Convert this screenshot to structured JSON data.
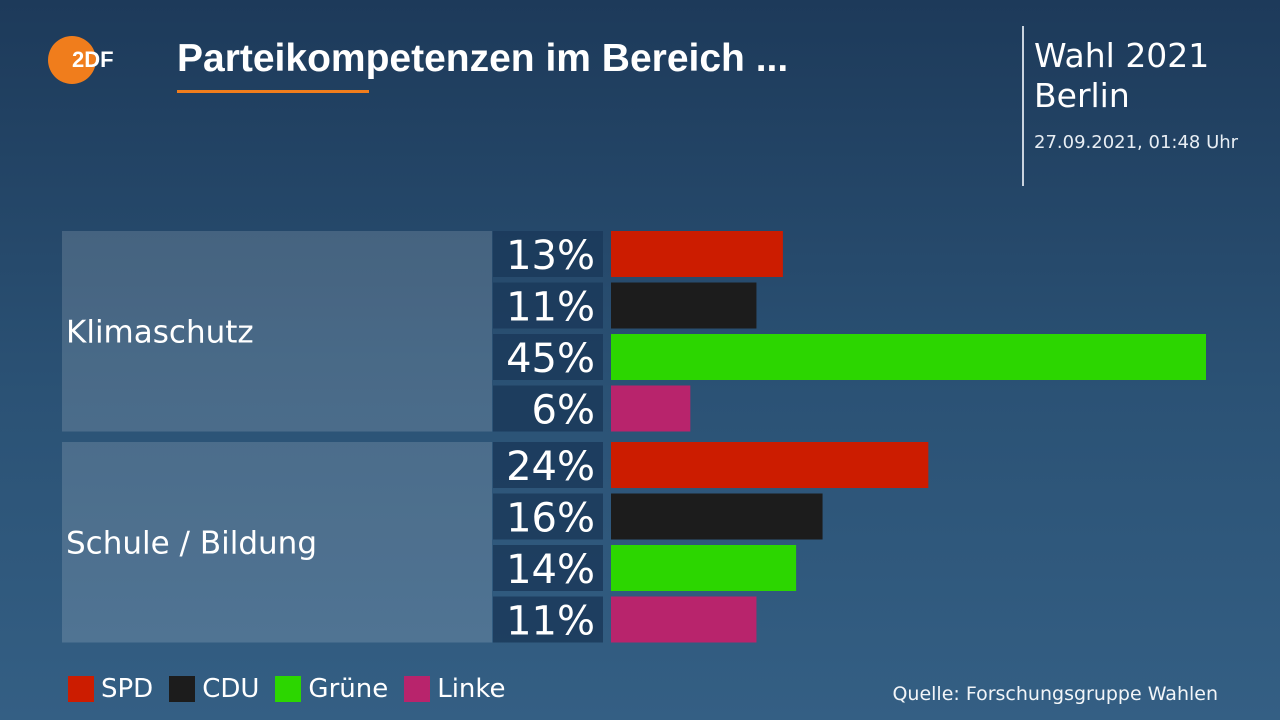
{
  "header": {
    "logo_text": "2DF",
    "title": "Parteikompetenzen im Bereich ...",
    "election": "Wahl 2021",
    "place": "Berlin",
    "timestamp": "27.09.2021, 01:48 Uhr"
  },
  "colors": {
    "SPD": "#cc1c00",
    "CDU": "#1c1c1c",
    "Grüne": "#2cd600",
    "Linke": "#b8246c",
    "accent": "#f07d1c"
  },
  "chart_data": {
    "type": "bar",
    "orientation": "horizontal",
    "title": "Parteikompetenzen im Bereich ...",
    "unit": "%",
    "xlim": [
      0,
      45
    ],
    "grid": false,
    "legend_placement": "bottom-left",
    "categories": [
      "Klimaschutz",
      "Schule / Bildung"
    ],
    "series": [
      {
        "name": "SPD",
        "values": [
          13,
          24
        ],
        "labels": [
          "13%",
          "24%"
        ]
      },
      {
        "name": "CDU",
        "values": [
          11,
          16
        ],
        "labels": [
          "11%",
          "16%"
        ]
      },
      {
        "name": "Grüne",
        "values": [
          45,
          14
        ],
        "labels": [
          "45%",
          "14%"
        ]
      },
      {
        "name": "Linke",
        "values": [
          6,
          11
        ],
        "labels": [
          "6%",
          "11%"
        ]
      }
    ]
  },
  "legend": {
    "items": [
      {
        "label": "SPD",
        "color": "#cc1c00"
      },
      {
        "label": "CDU",
        "color": "#1c1c1c"
      },
      {
        "label": "Grüne",
        "color": "#2cd600"
      },
      {
        "label": "Linke",
        "color": "#b8246c"
      }
    ]
  },
  "footer": {
    "source": "Quelle: Forschungsgruppe Wahlen"
  }
}
